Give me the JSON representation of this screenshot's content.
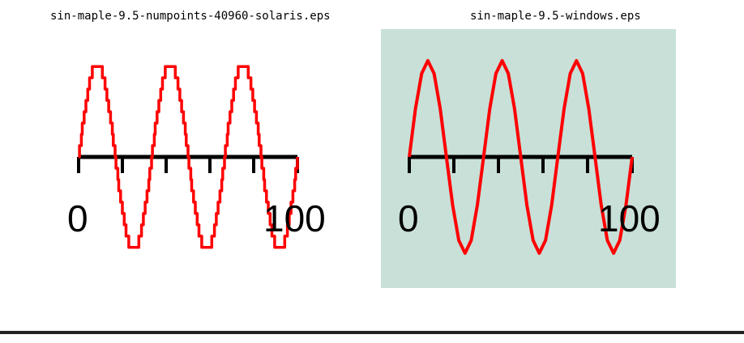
{
  "captions": {
    "left": "sin-maple-9.5-numpoints-40960-solaris.eps",
    "right": "sin-maple-9.5-windows.eps"
  },
  "colors": {
    "curve": "#ff0000",
    "axis": "#000000",
    "right_background": "#c8e0d8"
  },
  "chart_data": [
    {
      "type": "line",
      "style": "staircase",
      "function": "sin",
      "xlim": [
        0,
        100
      ],
      "ylim": [
        -1,
        1
      ],
      "x_tick_labels": [
        "0",
        "100"
      ],
      "grid": false,
      "background": "#ffffff",
      "series": [
        {
          "periods": 3,
          "x_start": 0,
          "x_end": 100
        }
      ]
    },
    {
      "type": "line",
      "style": "polyline",
      "function": "sin",
      "xlim": [
        0,
        100
      ],
      "ylim": [
        -1,
        1
      ],
      "x_tick_labels": [
        "0",
        "100"
      ],
      "grid": false,
      "background": "#c8e0d8",
      "series": [
        {
          "periods": 3,
          "x_start": 0,
          "x_end": 100
        }
      ]
    }
  ]
}
